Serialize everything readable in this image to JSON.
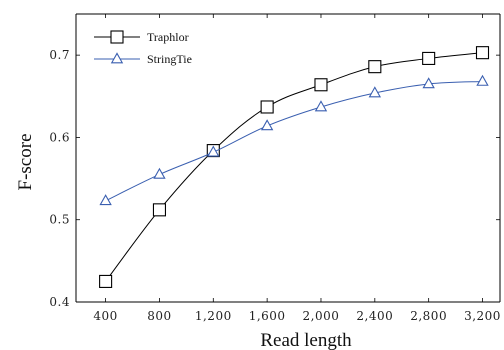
{
  "chart_data": {
    "type": "line",
    "title": "",
    "xlabel": "Read length",
    "ylabel": "F-score",
    "x": [
      400,
      800,
      1200,
      1600,
      2000,
      2400,
      2800,
      3200
    ],
    "x_tick_labels": [
      "400",
      "800",
      "1,200",
      "1,600",
      "2,000",
      "2,400",
      "2,800",
      "3,200"
    ],
    "y_ticks": [
      0.4,
      0.5,
      0.6,
      0.7
    ],
    "y_tick_labels": [
      "0.4",
      "0.5",
      "0.6",
      "0.7"
    ],
    "xlim": [
      180,
      3330
    ],
    "ylim": [
      0.4,
      0.75
    ],
    "grid": false,
    "legend_position": "top-left",
    "series": [
      {
        "name": "Traphlor",
        "marker": "square",
        "color": "#000000",
        "values": [
          0.425,
          0.512,
          0.584,
          0.637,
          0.664,
          0.686,
          0.696,
          0.703
        ]
      },
      {
        "name": "StringTie",
        "marker": "triangle",
        "color": "#3a5fb0",
        "values": [
          0.523,
          0.555,
          0.582,
          0.614,
          0.637,
          0.654,
          0.665,
          0.668
        ]
      }
    ]
  }
}
